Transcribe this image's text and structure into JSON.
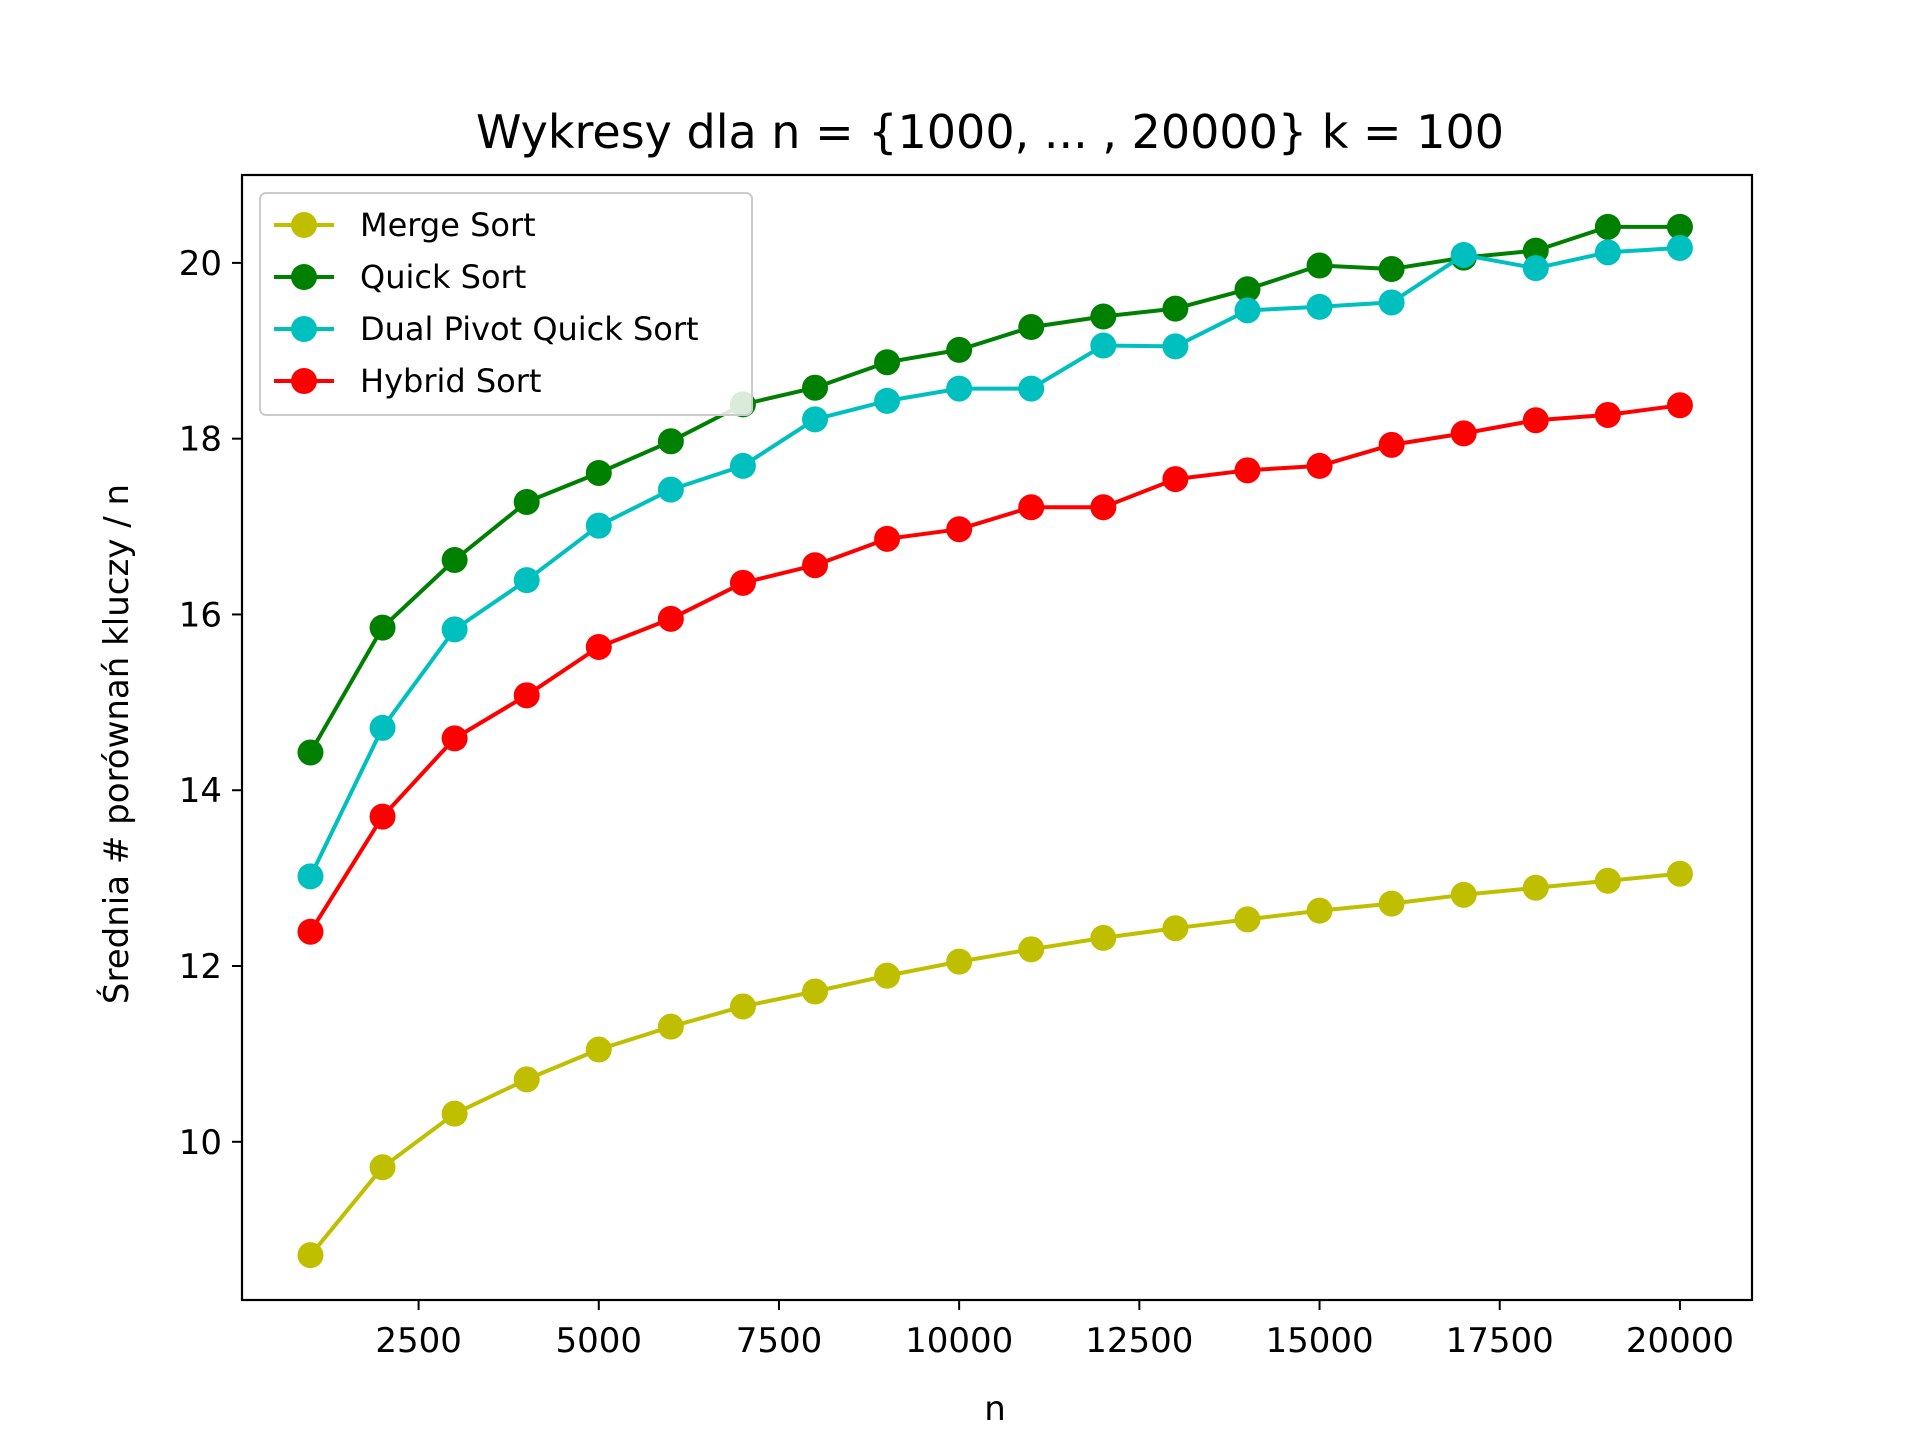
{
  "chart_data": {
    "type": "line",
    "title": "Wykresy dla n = {1000, ... , 20000} k = 100",
    "xlabel": "n",
    "ylabel": "Średnia # porównań kluczy / n",
    "xlim": [
      50,
      21000
    ],
    "ylim": [
      8.2,
      21.0
    ],
    "xticks": [
      2500,
      5000,
      7500,
      10000,
      12500,
      15000,
      17500,
      20000
    ],
    "yticks": [
      10,
      12,
      14,
      16,
      18,
      20
    ],
    "grid": false,
    "legend_position": "top-left",
    "x": [
      1000,
      2000,
      3000,
      4000,
      5000,
      6000,
      7000,
      8000,
      9000,
      10000,
      11000,
      12000,
      13000,
      14000,
      15000,
      16000,
      17000,
      18000,
      19000,
      20000
    ],
    "series": [
      {
        "name": "Merge Sort",
        "color": "#bfbf00",
        "values": [
          8.71,
          9.71,
          10.32,
          10.71,
          11.05,
          11.31,
          11.54,
          11.71,
          11.89,
          12.05,
          12.19,
          12.32,
          12.43,
          12.53,
          12.63,
          12.71,
          12.81,
          12.89,
          12.97,
          13.05
        ]
      },
      {
        "name": "Quick Sort",
        "color": "#008000",
        "values": [
          14.43,
          15.85,
          16.62,
          17.28,
          17.61,
          17.97,
          18.39,
          18.58,
          18.87,
          19.01,
          19.27,
          19.39,
          19.48,
          19.7,
          19.97,
          19.93,
          20.06,
          20.14,
          20.41,
          20.41
        ]
      },
      {
        "name": "Dual Pivot Quick Sort",
        "color": "#00bfbf",
        "values": [
          13.02,
          14.71,
          15.83,
          16.39,
          17.01,
          17.42,
          17.69,
          18.22,
          18.43,
          18.57,
          18.57,
          19.06,
          19.05,
          19.46,
          19.5,
          19.55,
          20.09,
          19.94,
          20.12,
          20.17
        ]
      },
      {
        "name": "Hybrid Sort",
        "color": "#ff0000",
        "values": [
          12.39,
          13.7,
          14.59,
          15.08,
          15.63,
          15.95,
          16.36,
          16.56,
          16.86,
          16.97,
          17.22,
          17.22,
          17.54,
          17.64,
          17.69,
          17.93,
          18.06,
          18.21,
          18.27,
          18.38
        ]
      }
    ]
  }
}
